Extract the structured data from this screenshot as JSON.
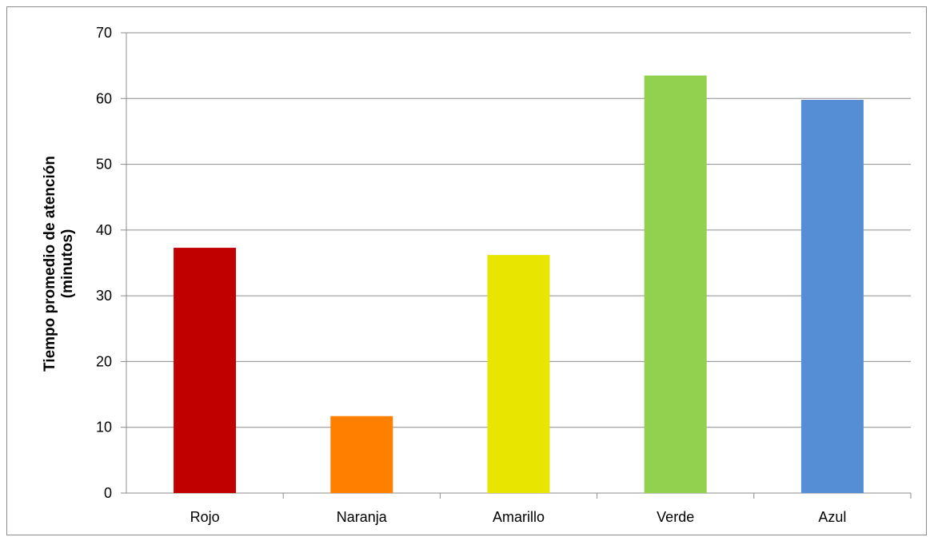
{
  "chart_data": {
    "type": "bar",
    "categories": [
      "Rojo",
      "Naranja",
      "Amarillo",
      "Verde",
      "Azul"
    ],
    "values": [
      37.3,
      11.7,
      36.2,
      63.5,
      59.8
    ],
    "colors": [
      "#c00000",
      "#ff8000",
      "#e8e600",
      "#92d050",
      "#558ed5"
    ],
    "ylabel_lines": [
      "Tiempo promedio de atención",
      "(minutos)"
    ],
    "ylim": [
      0,
      70
    ],
    "yticks": [
      0,
      10,
      20,
      30,
      40,
      50,
      60,
      70
    ],
    "grid": true,
    "legend": "none"
  }
}
